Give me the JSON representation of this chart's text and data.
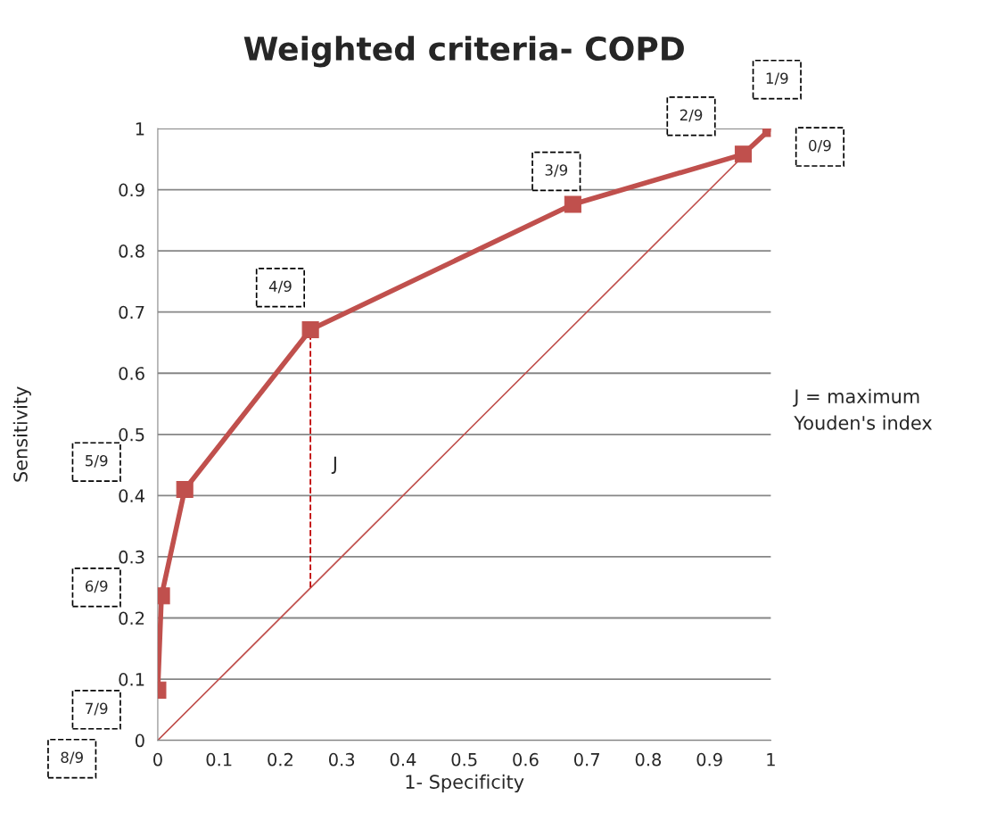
{
  "chart_data": {
    "type": "line",
    "title": "Weighted criteria- COPD",
    "xlabel": "1- Specificity",
    "ylabel": "Sensitivity",
    "series": [
      {
        "color": "#c0504d",
        "x": [
          0,
          0.006,
          0.044,
          0.249,
          0.677,
          0.955,
          1
        ],
        "values": [
          0.082,
          0.236,
          0.41,
          0.671,
          0.876,
          0.958,
          1
        ],
        "marker": "square",
        "line_style": "solid"
      },
      {
        "color": "#c0504d",
        "x": [
          0,
          1
        ],
        "values": [
          0,
          1
        ],
        "marker": "none",
        "line_style": "solid"
      },
      {
        "color": "#c00000",
        "x": [
          0.249,
          0.249
        ],
        "values": [
          0.25,
          0.671
        ],
        "marker": "none",
        "line_style": "dashed"
      }
    ],
    "annotations": [
      "0/9",
      "1/9",
      "2/9",
      "3/9",
      "4/9",
      "5/9",
      "6/9",
      "7/9",
      "8/9",
      {
        "text": "J",
        "x": 0.249,
        "y": 0.45
      },
      "J = maximum",
      "Youden's index"
    ],
    "xlim": [
      0,
      1
    ],
    "ylim": [
      0,
      1
    ],
    "xticks": [
      0,
      0.1,
      0.2,
      0.3,
      0.4,
      0.5,
      0.6,
      0.7,
      0.8,
      0.9,
      1
    ],
    "yticks": [
      0,
      0.1,
      0.2,
      0.3,
      0.4,
      0.5,
      0.6,
      0.7,
      0.8,
      0.9,
      1
    ],
    "grid": "y",
    "legend": false
  }
}
